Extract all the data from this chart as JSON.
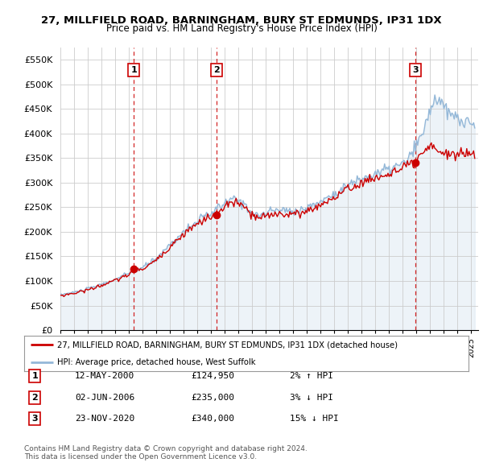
{
  "title": "27, MILLFIELD ROAD, BARNINGHAM, BURY ST EDMUNDS, IP31 1DX",
  "subtitle": "Price paid vs. HM Land Registry's House Price Index (HPI)",
  "ylabel_ticks": [
    "£0",
    "£50K",
    "£100K",
    "£150K",
    "£200K",
    "£250K",
    "£300K",
    "£350K",
    "£400K",
    "£450K",
    "£500K",
    "£550K"
  ],
  "ytick_values": [
    0,
    50000,
    100000,
    150000,
    200000,
    250000,
    300000,
    350000,
    400000,
    450000,
    500000,
    550000
  ],
  "ylim": [
    0,
    575000
  ],
  "legend_line1": "27, MILLFIELD ROAD, BARNINGHAM, BURY ST EDMUNDS, IP31 1DX (detached house)",
  "legend_line2": "HPI: Average price, detached house, West Suffolk",
  "sale1_label": "1",
  "sale1_date": "12-MAY-2000",
  "sale1_price": "£124,950",
  "sale1_hpi": "2% ↑ HPI",
  "sale1_x": 2000.36,
  "sale1_y": 124950,
  "sale2_label": "2",
  "sale2_date": "02-JUN-2006",
  "sale2_price": "£235,000",
  "sale2_hpi": "3% ↓ HPI",
  "sale2_x": 2006.42,
  "sale2_y": 235000,
  "sale3_label": "3",
  "sale3_date": "23-NOV-2020",
  "sale3_price": "£340,000",
  "sale3_hpi": "15% ↓ HPI",
  "sale3_x": 2020.9,
  "sale3_y": 340000,
  "footnote1": "Contains HM Land Registry data © Crown copyright and database right 2024.",
  "footnote2": "This data is licensed under the Open Government Licence v3.0.",
  "hpi_color": "#94b8d8",
  "hpi_fill_color": "#dce8f3",
  "price_color": "#cc0000",
  "vline_color": "#cc0000",
  "background_color": "#ffffff",
  "grid_color": "#cccccc",
  "xmin": 1995.0,
  "xmax": 2025.5
}
